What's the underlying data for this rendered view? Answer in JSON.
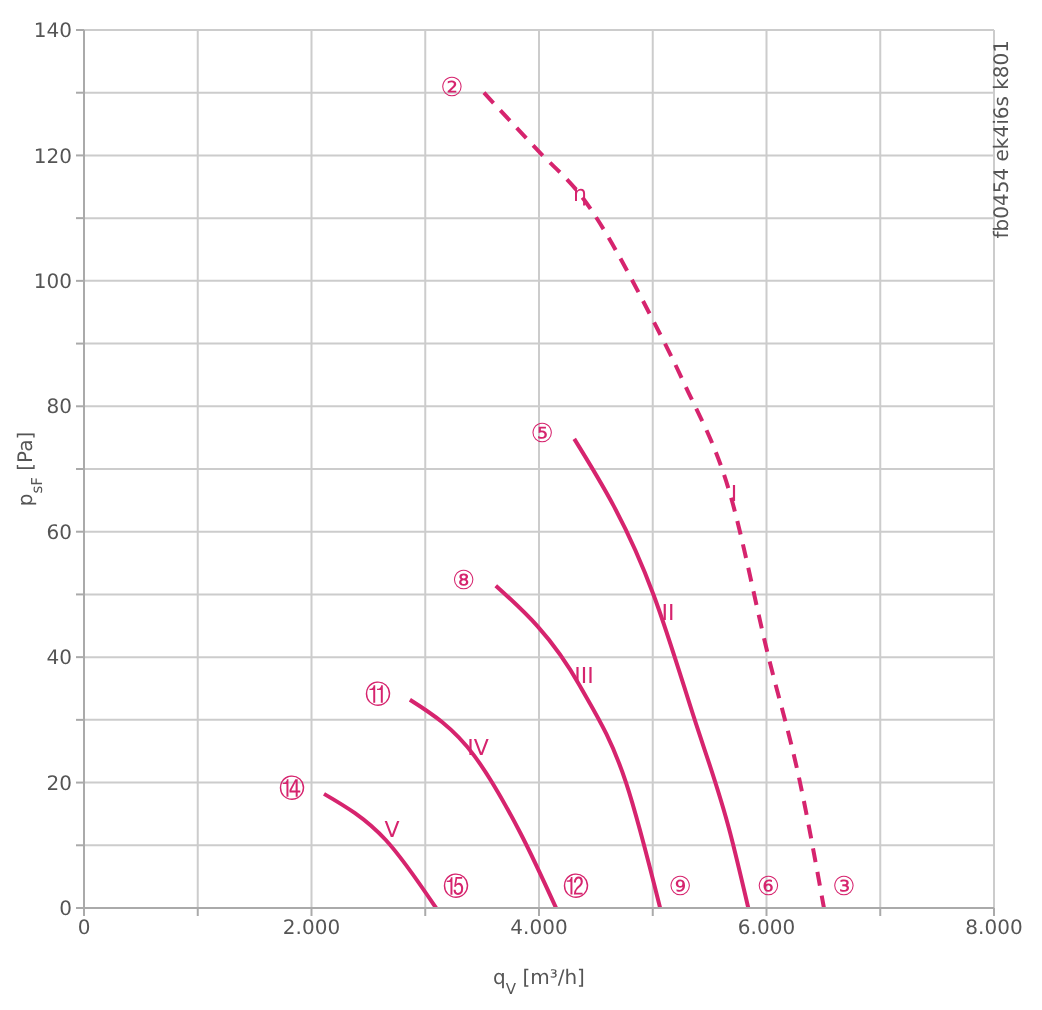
{
  "chart_data": {
    "type": "line",
    "xlabel": "q$_{V}$ [m³/h]",
    "ylabel": "p$_{sF}$ [Pa]",
    "xlim": [
      0,
      8000
    ],
    "xticks": [
      0,
      {
        "value": 1000,
        "label": null
      },
      {
        "value": 2000,
        "label": "2.000"
      },
      {
        "value": 3000,
        "label": null
      },
      {
        "value": 4000,
        "label": "4.000"
      },
      {
        "value": 5000,
        "label": null
      },
      {
        "value": 6000,
        "label": "6.000"
      },
      {
        "value": 7000,
        "label": null
      },
      {
        "value": 8000,
        "label": "8.000"
      }
    ],
    "ylim": [
      0,
      140
    ],
    "yticks": [
      0,
      {
        "value": 10,
        "label": null
      },
      20,
      {
        "value": 30,
        "label": null
      },
      40,
      {
        "value": 50,
        "label": null
      },
      60,
      {
        "value": 70,
        "label": null
      },
      80,
      {
        "value": 90,
        "label": null
      },
      100,
      {
        "value": 110,
        "label": null
      },
      120,
      {
        "value": 130,
        "label": null
      },
      140
    ],
    "grid": true,
    "marker": "none",
    "series": [
      {
        "color": "#d6246e",
        "line_style": "dashed",
        "x": [
          3516,
          4000,
          4360,
          5000,
          5275,
          5680,
          6010,
          6295,
          6505
        ],
        "values": [
          130,
          120.6,
          113.8,
          93.8,
          83.7,
          66,
          40.6,
          20,
          0
        ]
      },
      {
        "color": "#d6246e",
        "line_style": "solid",
        "x": [
          4310,
          5010,
          5360,
          5680,
          5840
        ],
        "values": [
          74.8,
          49.8,
          30.5,
          12,
          0
        ]
      },
      {
        "color": "#d6246e",
        "line_style": "solid",
        "x": [
          3620,
          4360,
          4765,
          5065
        ],
        "values": [
          51.4,
          35.4,
          20,
          0
        ]
      },
      {
        "color": "#d6246e",
        "line_style": "solid",
        "x": [
          2865,
          3430,
          3835,
          4150
        ],
        "values": [
          33.2,
          24.3,
          12,
          0
        ]
      },
      {
        "color": "#d6246e",
        "line_style": "solid",
        "x": [
          2110,
          2655,
          3095
        ],
        "values": [
          18.2,
          10.8,
          0
        ]
      }
    ],
    "annotations": [
      {
        "text": "②",
        "x": 3516,
        "y": 130
      },
      {
        "text": "η",
        "x": 4360,
        "y": 113.8
      },
      {
        "text": "⑤",
        "x": 4310,
        "y": 74.8
      },
      {
        "text": "⑧",
        "x": 3620,
        "y": 51.4
      },
      {
        "text": "⑪",
        "x": 2865,
        "y": 33.2
      },
      {
        "text": "⑭",
        "x": 2110,
        "y": 18.2
      },
      {
        "text": "⑮",
        "x": 3095,
        "y": 0
      },
      {
        "text": "⑫",
        "x": 4150,
        "y": 0
      },
      {
        "text": "⑨",
        "x": 5065,
        "y": 0
      },
      {
        "text": "⑥",
        "x": 5840,
        "y": 0
      },
      {
        "text": "③",
        "x": 6505,
        "y": 0
      },
      {
        "text": "I",
        "x": 5714,
        "y": 66
      },
      {
        "text": "II",
        "x": 5134,
        "y": 47
      },
      {
        "text": "III",
        "x": 4396,
        "y": 37
      },
      {
        "text": "IV",
        "x": 3464,
        "y": 25.5
      },
      {
        "text": "V",
        "x": 2708,
        "y": 12.5
      },
      "fb0454 ek4i6s k801"
    ]
  }
}
